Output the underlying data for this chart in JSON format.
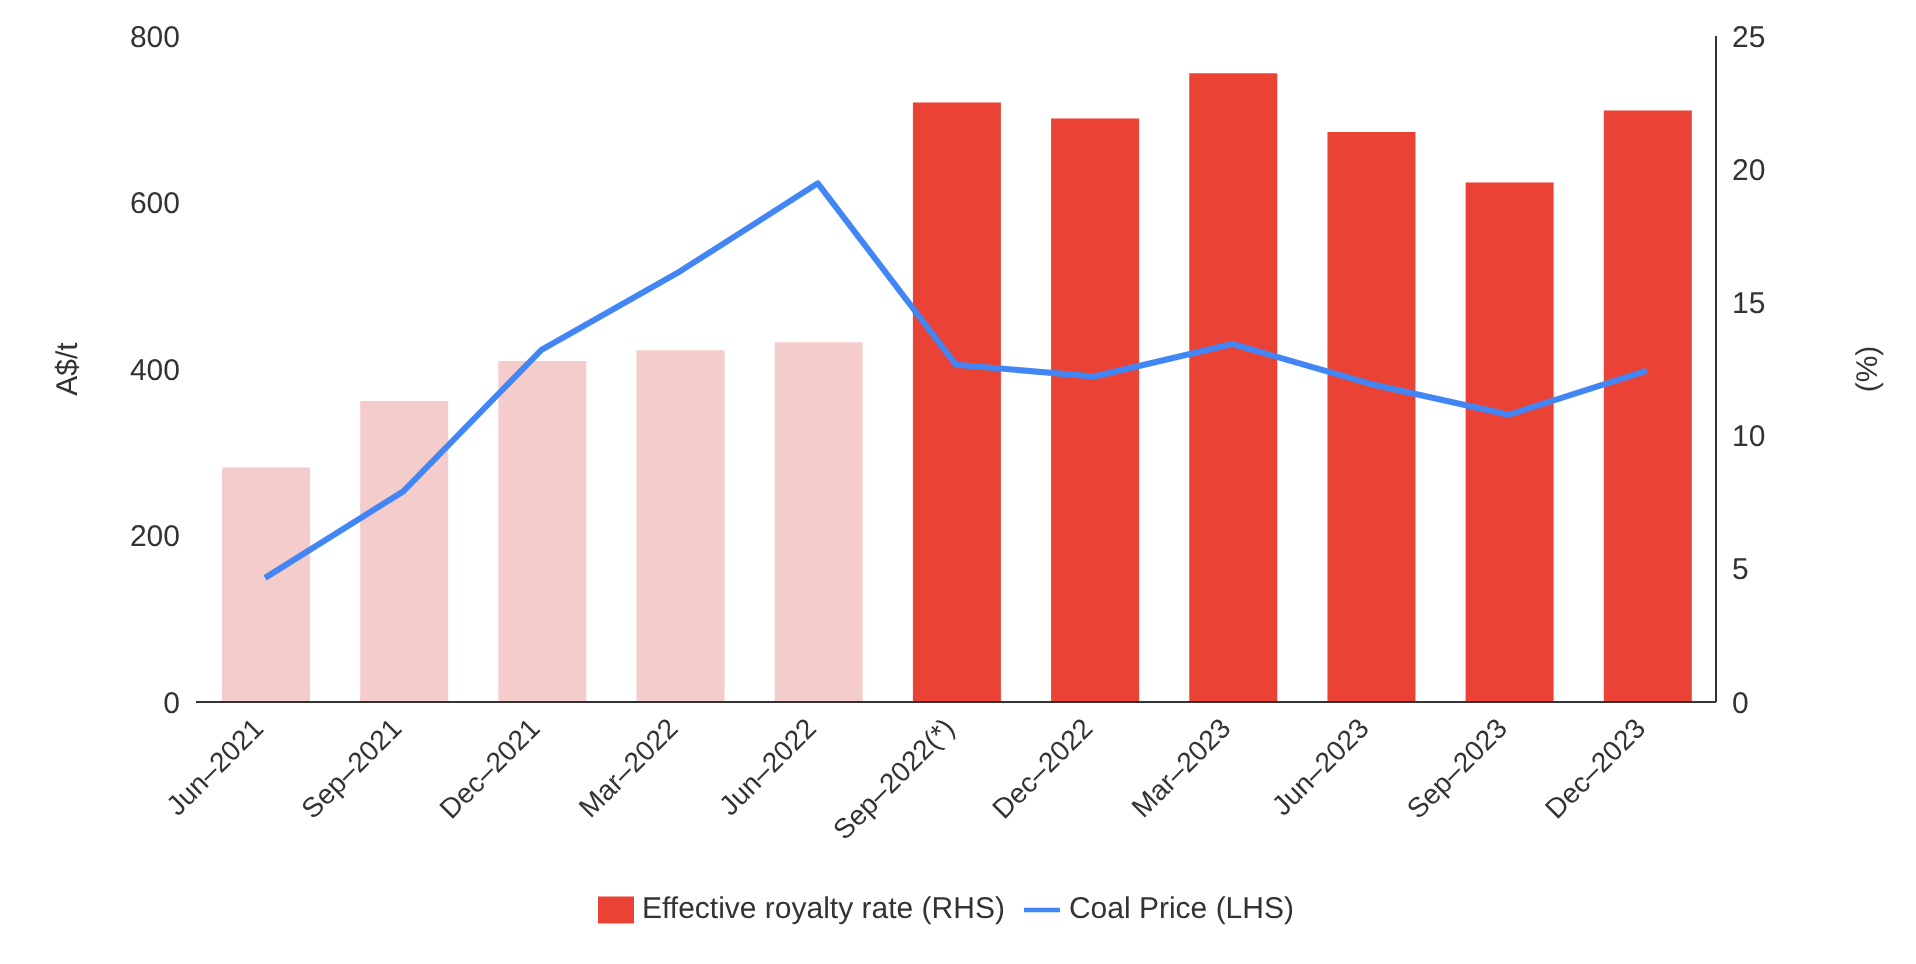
{
  "chart_data": {
    "type": "bar",
    "categories": [
      "Jun–2021",
      "Sep–2021",
      "Dec–2021",
      "Mar–2022",
      "Jun–2022",
      "Sep–2022(*)",
      "Dec–2022",
      "Mar–2023",
      "Jun–2023",
      "Sep–2023",
      "Dec–2023"
    ],
    "series": [
      {
        "name": "Effective royalty rate (RHS)",
        "axis": "y2",
        "color": "#ea4335",
        "colors": [
          "#f4cccc",
          "#f4cccc",
          "#f4cccc",
          "#f4cccc",
          "#f4cccc",
          "#ea4335",
          "#ea4335",
          "#ea4335",
          "#ea4335",
          "#ea4335",
          "#ea4335"
        ],
        "values": [
          8.8,
          11.3,
          12.8,
          13.2,
          13.5,
          22.5,
          21.9,
          23.6,
          21.4,
          19.5,
          22.2
        ]
      },
      {
        "name": "Coal Price (LHS)",
        "type": "line",
        "color": "#4285f4",
        "values": [
          149,
          253,
          423,
          517,
          623,
          405,
          391,
          430,
          382,
          345,
          398
        ]
      }
    ],
    "ylabel": "A$/t",
    "y2label": "(%)",
    "ylim": [
      0,
      800
    ],
    "yticks": [
      0,
      200,
      400,
      600,
      800
    ],
    "y2lim": [
      0,
      25
    ],
    "y2ticks": [
      0,
      5,
      10,
      15,
      20,
      25
    ],
    "grid": false,
    "legend": "bottom",
    "marker": "none",
    "line_style": "solid"
  }
}
